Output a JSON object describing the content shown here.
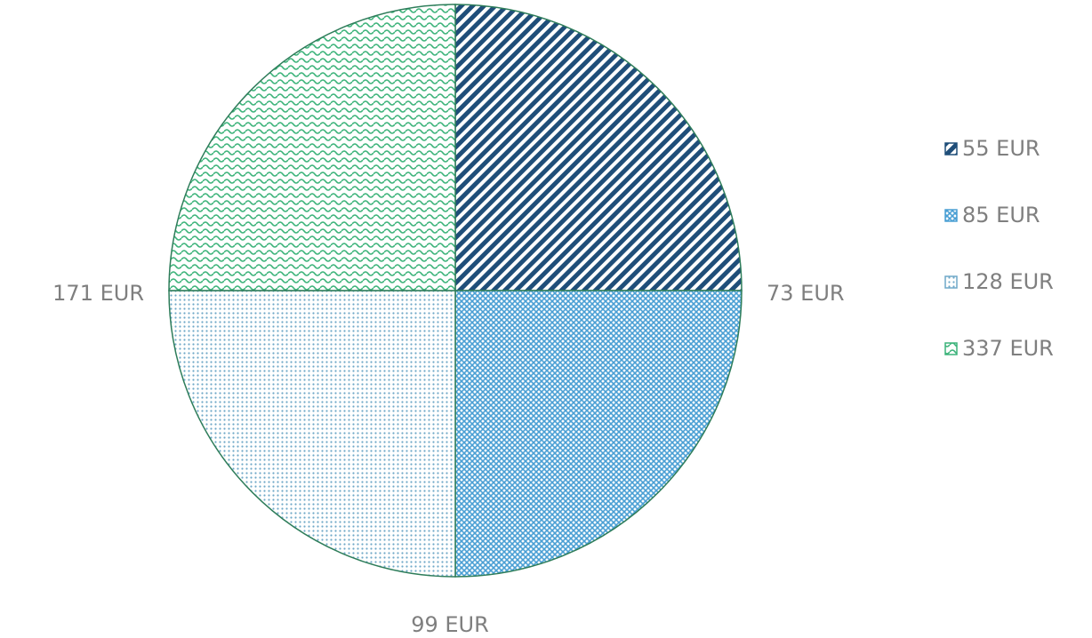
{
  "chart_data": {
    "type": "pie",
    "categories": [
      "55 EUR",
      "85 EUR",
      "128 EUR",
      "337 EUR"
    ],
    "values": [
      73,
      99,
      171,
      null
    ],
    "value_labels": [
      "73 EUR",
      "99 EUR",
      "171 EUR",
      null
    ],
    "colors": [
      "#1f4e79",
      "#4a9fd4",
      "#6fa8c8",
      "#3cb37a"
    ],
    "patterns": [
      "diagonal",
      "crosshatch",
      "dots",
      "wave"
    ],
    "border_color": "#2e7d5a",
    "legend": "right"
  }
}
